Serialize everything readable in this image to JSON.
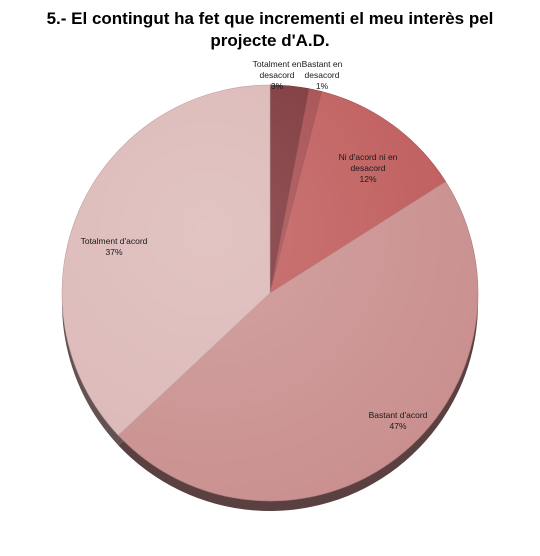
{
  "chart_data": {
    "type": "pie",
    "title": "5.- El contingut ha fet que incrementi el meu interès pel projecte d'A.D.",
    "title_lines": [
      "5.- El contingut ha fet que incrementi el meu interès pel",
      "projecte d'A.D."
    ],
    "legend": "none",
    "slices": [
      {
        "label_lines": [
          "Totalment en",
          "desacord"
        ],
        "label": "Totalment en desacord",
        "value": 3,
        "value_label": "3%",
        "color": "#7a3236"
      },
      {
        "label_lines": [
          "Bastant en",
          "desacord"
        ],
        "label": "Bastant en desacord",
        "value": 1,
        "value_label": "1%",
        "color": "#a54a4d"
      },
      {
        "label_lines": [
          "Ni d'acord ni en",
          "desacord"
        ],
        "label": "Ni d'acord ni en desacord",
        "value": 12,
        "value_label": "12%",
        "color": "#bf5a5a"
      },
      {
        "label_lines": [
          "Bastant d'acord"
        ],
        "label": "Bastant d'acord",
        "value": 47,
        "value_label": "47%",
        "color": "#c98f8e"
      },
      {
        "label_lines": [
          "Totalment d'acord"
        ],
        "label": "Totalment d'acord",
        "value": 37,
        "value_label": "37%",
        "color": "#dbb7b6"
      }
    ]
  }
}
